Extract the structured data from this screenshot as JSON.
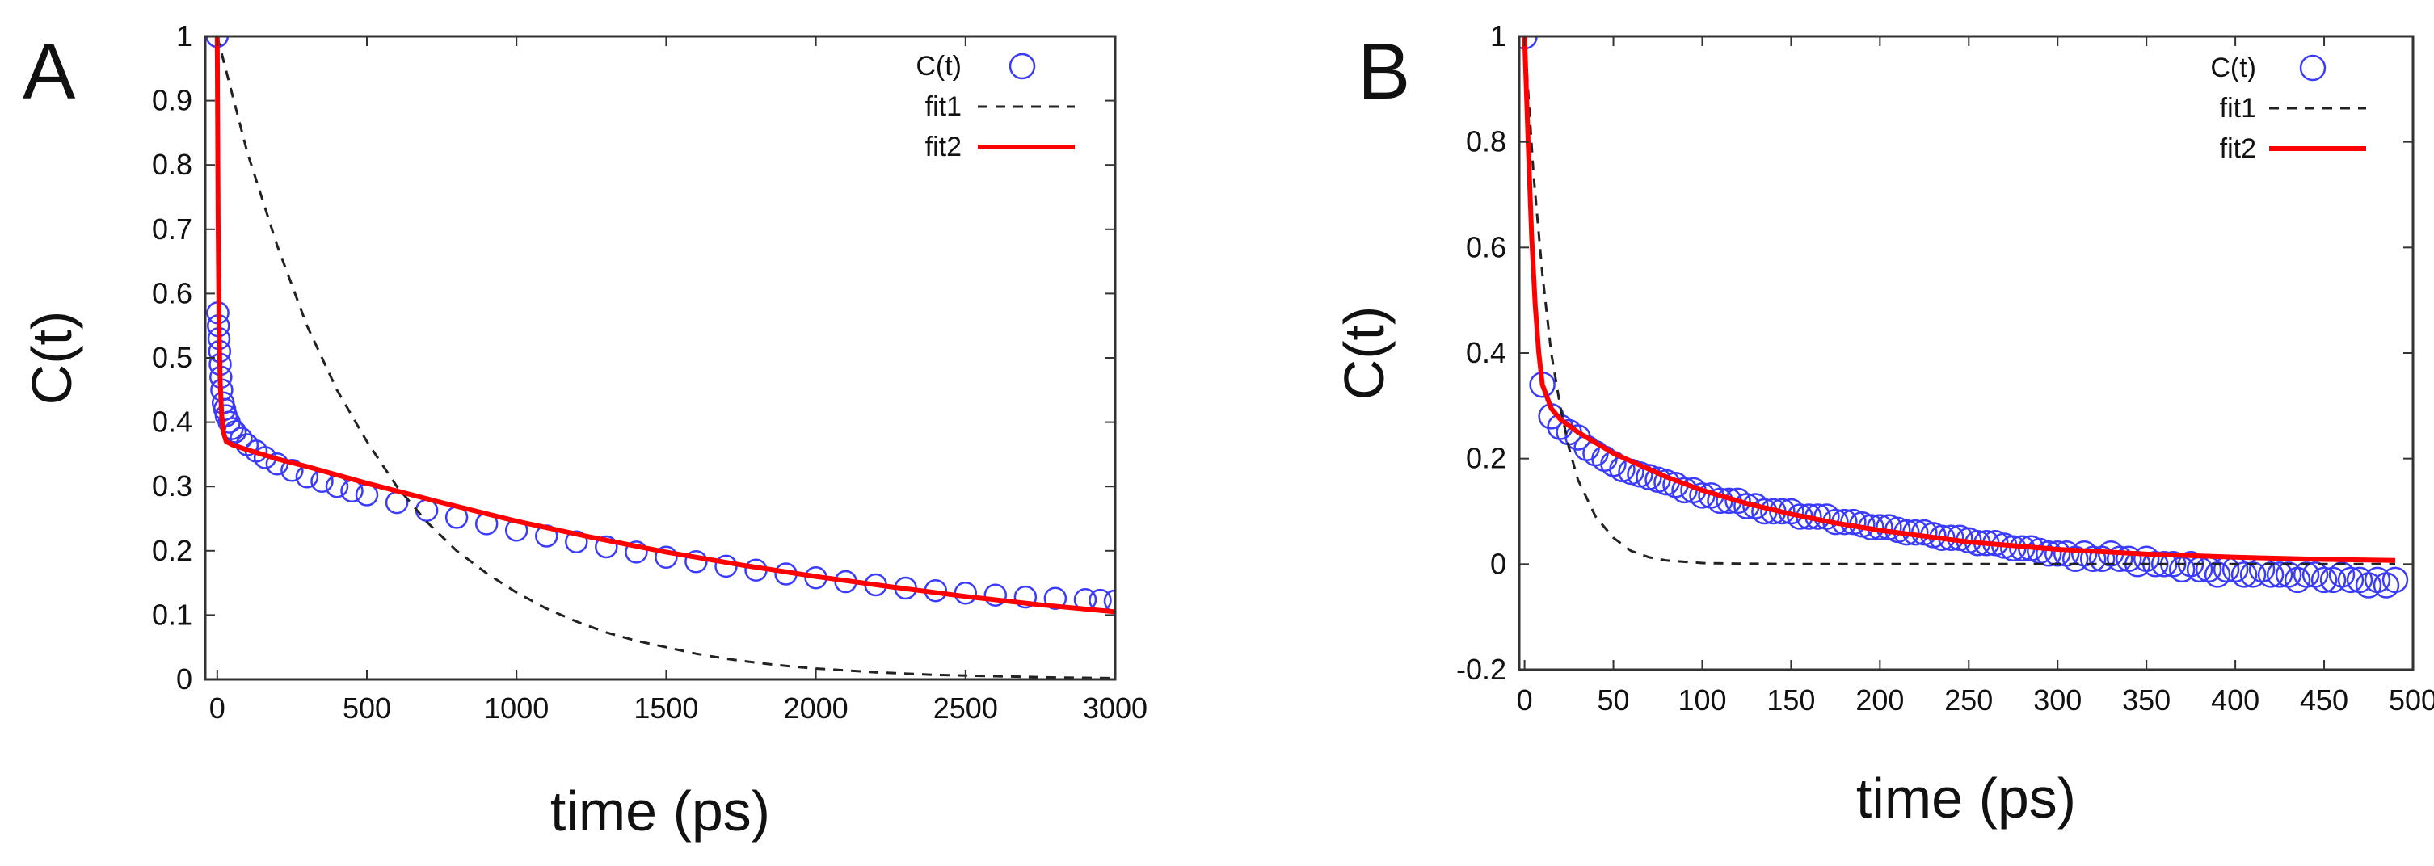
{
  "chart_data": [
    {
      "panel_label": "A",
      "type": "scatter",
      "title": "",
      "xlabel": "time (ps)",
      "ylabel": "C(t)",
      "xlim": [
        -40,
        3000
      ],
      "ylim": [
        0,
        1
      ],
      "xticks": [
        0,
        500,
        1000,
        1500,
        2000,
        2500,
        3000
      ],
      "yticks": [
        0,
        0.1,
        0.2,
        0.3,
        0.4,
        0.5,
        0.6,
        0.7,
        0.8,
        0.9,
        1
      ],
      "xtick_labels": [
        "0",
        "500",
        "1000",
        "1500",
        "2000",
        "2500",
        "3000"
      ],
      "ytick_labels": [
        "0",
        "0.1",
        "0.2",
        "0.3",
        "0.4",
        "0.5",
        "0.6",
        "0.7",
        "0.8",
        "0.9",
        "1"
      ],
      "grid": false,
      "legend_position": "top-right",
      "series": [
        {
          "name": "C(t)",
          "style": "markers",
          "marker": "open-circle",
          "color": "#3b3bff",
          "x": [
            0,
            2,
            4,
            6,
            8,
            10,
            12,
            15,
            20,
            25,
            30,
            40,
            50,
            60,
            80,
            100,
            130,
            160,
            200,
            250,
            300,
            350,
            400,
            450,
            500,
            600,
            700,
            800,
            900,
            1000,
            1100,
            1200,
            1300,
            1400,
            1500,
            1600,
            1700,
            1800,
            1900,
            2000,
            2100,
            2200,
            2300,
            2400,
            2500,
            2600,
            2700,
            2800,
            2900,
            2950,
            3000
          ],
          "y": [
            1.0,
            0.57,
            0.55,
            0.53,
            0.51,
            0.49,
            0.47,
            0.45,
            0.43,
            0.42,
            0.41,
            0.4,
            0.39,
            0.385,
            0.375,
            0.365,
            0.355,
            0.345,
            0.335,
            0.325,
            0.315,
            0.308,
            0.3,
            0.293,
            0.287,
            0.275,
            0.263,
            0.252,
            0.242,
            0.232,
            0.223,
            0.214,
            0.206,
            0.198,
            0.19,
            0.183,
            0.176,
            0.17,
            0.164,
            0.158,
            0.152,
            0.147,
            0.142,
            0.138,
            0.134,
            0.131,
            0.128,
            0.126,
            0.124,
            0.123,
            0.122
          ]
        },
        {
          "name": "fit1",
          "style": "dashed",
          "color": "#222222",
          "x": [
            0,
            100,
            200,
            300,
            400,
            500,
            600,
            700,
            800,
            900,
            1000,
            1100,
            1200,
            1300,
            1400,
            1500,
            1600,
            1700,
            1800,
            1900,
            2000,
            2200,
            2400,
            2600,
            2800,
            3000
          ],
          "y": [
            1.0,
            0.82,
            0.675,
            0.55,
            0.45,
            0.37,
            0.3,
            0.245,
            0.2,
            0.165,
            0.135,
            0.11,
            0.09,
            0.073,
            0.06,
            0.05,
            0.04,
            0.032,
            0.026,
            0.021,
            0.017,
            0.011,
            0.007,
            0.005,
            0.003,
            0.002
          ]
        },
        {
          "name": "fit2",
          "style": "solid",
          "color": "#ff0000",
          "x": [
            0,
            3,
            6,
            10,
            15,
            20,
            30,
            50,
            100,
            200,
            300,
            500,
            750,
            1000,
            1250,
            1500,
            1750,
            2000,
            2250,
            2500,
            2750,
            3000
          ],
          "y": [
            1.0,
            0.72,
            0.55,
            0.46,
            0.41,
            0.385,
            0.37,
            0.365,
            0.357,
            0.343,
            0.331,
            0.305,
            0.275,
            0.246,
            0.221,
            0.198,
            0.178,
            0.16,
            0.144,
            0.129,
            0.116,
            0.105
          ]
        }
      ]
    },
    {
      "panel_label": "B",
      "type": "scatter",
      "title": "",
      "xlabel": "time (ps)",
      "ylabel": "C(t)",
      "xlim": [
        -3,
        500
      ],
      "ylim": [
        -0.2,
        1
      ],
      "xticks": [
        0,
        50,
        100,
        150,
        200,
        250,
        300,
        350,
        400,
        450,
        500
      ],
      "yticks": [
        -0.2,
        0,
        0.2,
        0.4,
        0.6,
        0.8,
        1
      ],
      "xtick_labels": [
        "0",
        "50",
        "100",
        "150",
        "200",
        "250",
        "300",
        "350",
        "400",
        "450",
        "500"
      ],
      "ytick_labels": [
        "-0.2",
        "0",
        "0.2",
        "0.4",
        "0.6",
        "0.8",
        "1"
      ],
      "grid": false,
      "legend_position": "top-right",
      "series": [
        {
          "name": "C(t)",
          "style": "markers",
          "marker": "open-circle",
          "color": "#3b3bff",
          "x": [
            0,
            10,
            15,
            20,
            25,
            30,
            35,
            40,
            45,
            50,
            55,
            60,
            65,
            70,
            75,
            80,
            85,
            90,
            95,
            100,
            105,
            110,
            115,
            120,
            125,
            130,
            135,
            140,
            145,
            150,
            155,
            160,
            165,
            170,
            175,
            180,
            185,
            190,
            195,
            200,
            205,
            210,
            215,
            220,
            225,
            230,
            235,
            240,
            245,
            250,
            255,
            260,
            265,
            270,
            275,
            280,
            285,
            290,
            295,
            300,
            305,
            310,
            315,
            320,
            325,
            330,
            335,
            340,
            345,
            350,
            355,
            360,
            365,
            370,
            375,
            380,
            385,
            390,
            395,
            400,
            405,
            410,
            415,
            420,
            425,
            430,
            435,
            440,
            445,
            450,
            455,
            460,
            465,
            470,
            475,
            480,
            485,
            490
          ],
          "y": [
            1.0,
            0.34,
            0.28,
            0.26,
            0.25,
            0.24,
            0.22,
            0.21,
            0.2,
            0.19,
            0.18,
            0.175,
            0.17,
            0.165,
            0.16,
            0.155,
            0.15,
            0.14,
            0.14,
            0.13,
            0.13,
            0.12,
            0.12,
            0.12,
            0.11,
            0.11,
            0.1,
            0.1,
            0.1,
            0.1,
            0.09,
            0.09,
            0.09,
            0.09,
            0.08,
            0.08,
            0.08,
            0.075,
            0.07,
            0.07,
            0.07,
            0.065,
            0.06,
            0.06,
            0.06,
            0.055,
            0.05,
            0.05,
            0.05,
            0.045,
            0.04,
            0.04,
            0.04,
            0.035,
            0.03,
            0.03,
            0.03,
            0.025,
            0.02,
            0.02,
            0.02,
            0.01,
            0.02,
            0.01,
            0.01,
            0.02,
            0.01,
            0.01,
            0.0,
            0.01,
            0.0,
            0.0,
            0.0,
            -0.01,
            0.0,
            -0.01,
            -0.01,
            -0.02,
            -0.01,
            -0.01,
            -0.02,
            -0.02,
            -0.01,
            -0.02,
            -0.02,
            -0.02,
            -0.03,
            -0.02,
            -0.02,
            -0.03,
            -0.03,
            -0.02,
            -0.03,
            -0.03,
            -0.04,
            -0.03,
            -0.04,
            -0.03
          ]
        },
        {
          "name": "fit1",
          "style": "dashed",
          "color": "#222222",
          "x": [
            0,
            5,
            10,
            15,
            20,
            25,
            30,
            40,
            50,
            60,
            70,
            80,
            100,
            120,
            150,
            200,
            250,
            300,
            350,
            400,
            450,
            490
          ],
          "y": [
            1.0,
            0.74,
            0.55,
            0.4,
            0.3,
            0.22,
            0.16,
            0.09,
            0.05,
            0.025,
            0.013,
            0.007,
            0.002,
            0.001,
            0.0,
            0.0,
            0.0,
            0.0,
            0.0,
            0.0,
            0.0,
            0.0
          ]
        },
        {
          "name": "fit2",
          "style": "solid",
          "color": "#ff0000",
          "x": [
            0,
            2,
            4,
            6,
            8,
            10,
            15,
            20,
            30,
            40,
            50,
            60,
            80,
            100,
            125,
            150,
            175,
            200,
            250,
            300,
            350,
            400,
            450,
            490
          ],
          "y": [
            1.0,
            0.8,
            0.62,
            0.49,
            0.4,
            0.34,
            0.295,
            0.275,
            0.25,
            0.23,
            0.21,
            0.195,
            0.165,
            0.14,
            0.115,
            0.095,
            0.078,
            0.064,
            0.042,
            0.028,
            0.019,
            0.013,
            0.009,
            0.007
          ]
        }
      ]
    }
  ]
}
